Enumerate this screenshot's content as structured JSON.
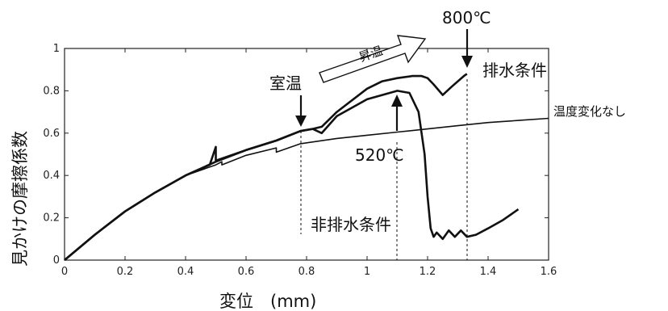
{
  "chart_data": {
    "type": "line",
    "xlabel": "変位　(mm)",
    "ylabel": "見かけの摩擦係数",
    "xlim": [
      0,
      1.6
    ],
    "ylim": [
      0,
      1
    ],
    "x_ticks": [
      "0",
      "0.2",
      "0.4",
      "0.6",
      "0.8",
      "1",
      "1.2",
      "1.4",
      "1.6"
    ],
    "y_ticks": [
      "0",
      "0.2",
      "0.4",
      "0.6",
      "0.8",
      "1"
    ],
    "grid": false,
    "series": [
      {
        "name": "温度変化なし",
        "x": [
          0,
          0.05,
          0.1,
          0.2,
          0.3,
          0.4,
          0.5,
          0.52,
          0.52,
          0.6,
          0.7,
          0.7,
          0.78,
          0.9,
          1.0,
          1.1,
          1.2,
          1.3,
          1.4,
          1.5,
          1.6
        ],
        "y": [
          0,
          0.06,
          0.12,
          0.23,
          0.32,
          0.4,
          0.45,
          0.465,
          0.45,
          0.495,
          0.53,
          0.51,
          0.55,
          0.575,
          0.59,
          0.605,
          0.62,
          0.635,
          0.65,
          0.66,
          0.67
        ]
      },
      {
        "name": "排水条件",
        "x": [
          0,
          0.1,
          0.2,
          0.3,
          0.4,
          0.48,
          0.5,
          0.5,
          0.6,
          0.7,
          0.78,
          0.82,
          0.85,
          0.9,
          1.0,
          1.05,
          1.1,
          1.15,
          1.18,
          1.2,
          1.22,
          1.25,
          1.28,
          1.32,
          1.33
        ],
        "y": [
          0,
          0.12,
          0.23,
          0.32,
          0.4,
          0.45,
          0.535,
          0.47,
          0.52,
          0.565,
          0.61,
          0.62,
          0.63,
          0.7,
          0.81,
          0.845,
          0.86,
          0.87,
          0.87,
          0.86,
          0.83,
          0.78,
          0.82,
          0.87,
          0.88
        ]
      },
      {
        "name": "非排水条件",
        "x": [
          0,
          0.1,
          0.2,
          0.3,
          0.4,
          0.5,
          0.6,
          0.7,
          0.78,
          0.82,
          0.85,
          0.9,
          1.0,
          1.05,
          1.1,
          1.14,
          1.17,
          1.19,
          1.2,
          1.21,
          1.22,
          1.23,
          1.25,
          1.27,
          1.29,
          1.31,
          1.33,
          1.36,
          1.4,
          1.45,
          1.5
        ],
        "y": [
          0,
          0.12,
          0.23,
          0.32,
          0.4,
          0.465,
          0.52,
          0.565,
          0.61,
          0.62,
          0.6,
          0.68,
          0.76,
          0.78,
          0.8,
          0.79,
          0.7,
          0.5,
          0.3,
          0.15,
          0.11,
          0.13,
          0.1,
          0.14,
          0.11,
          0.14,
          0.11,
          0.12,
          0.15,
          0.19,
          0.24
        ]
      }
    ],
    "annotations": {
      "room_temp": "室温",
      "heating": "昇温",
      "temp_800": "800℃",
      "temp_520": "520℃",
      "drained": "排水条件",
      "no_temp_change": "温度変化なし",
      "undrained": "非排水条件"
    }
  },
  "colors": {
    "line": "#111111",
    "axis": "#222222",
    "background": "#ffffff"
  }
}
